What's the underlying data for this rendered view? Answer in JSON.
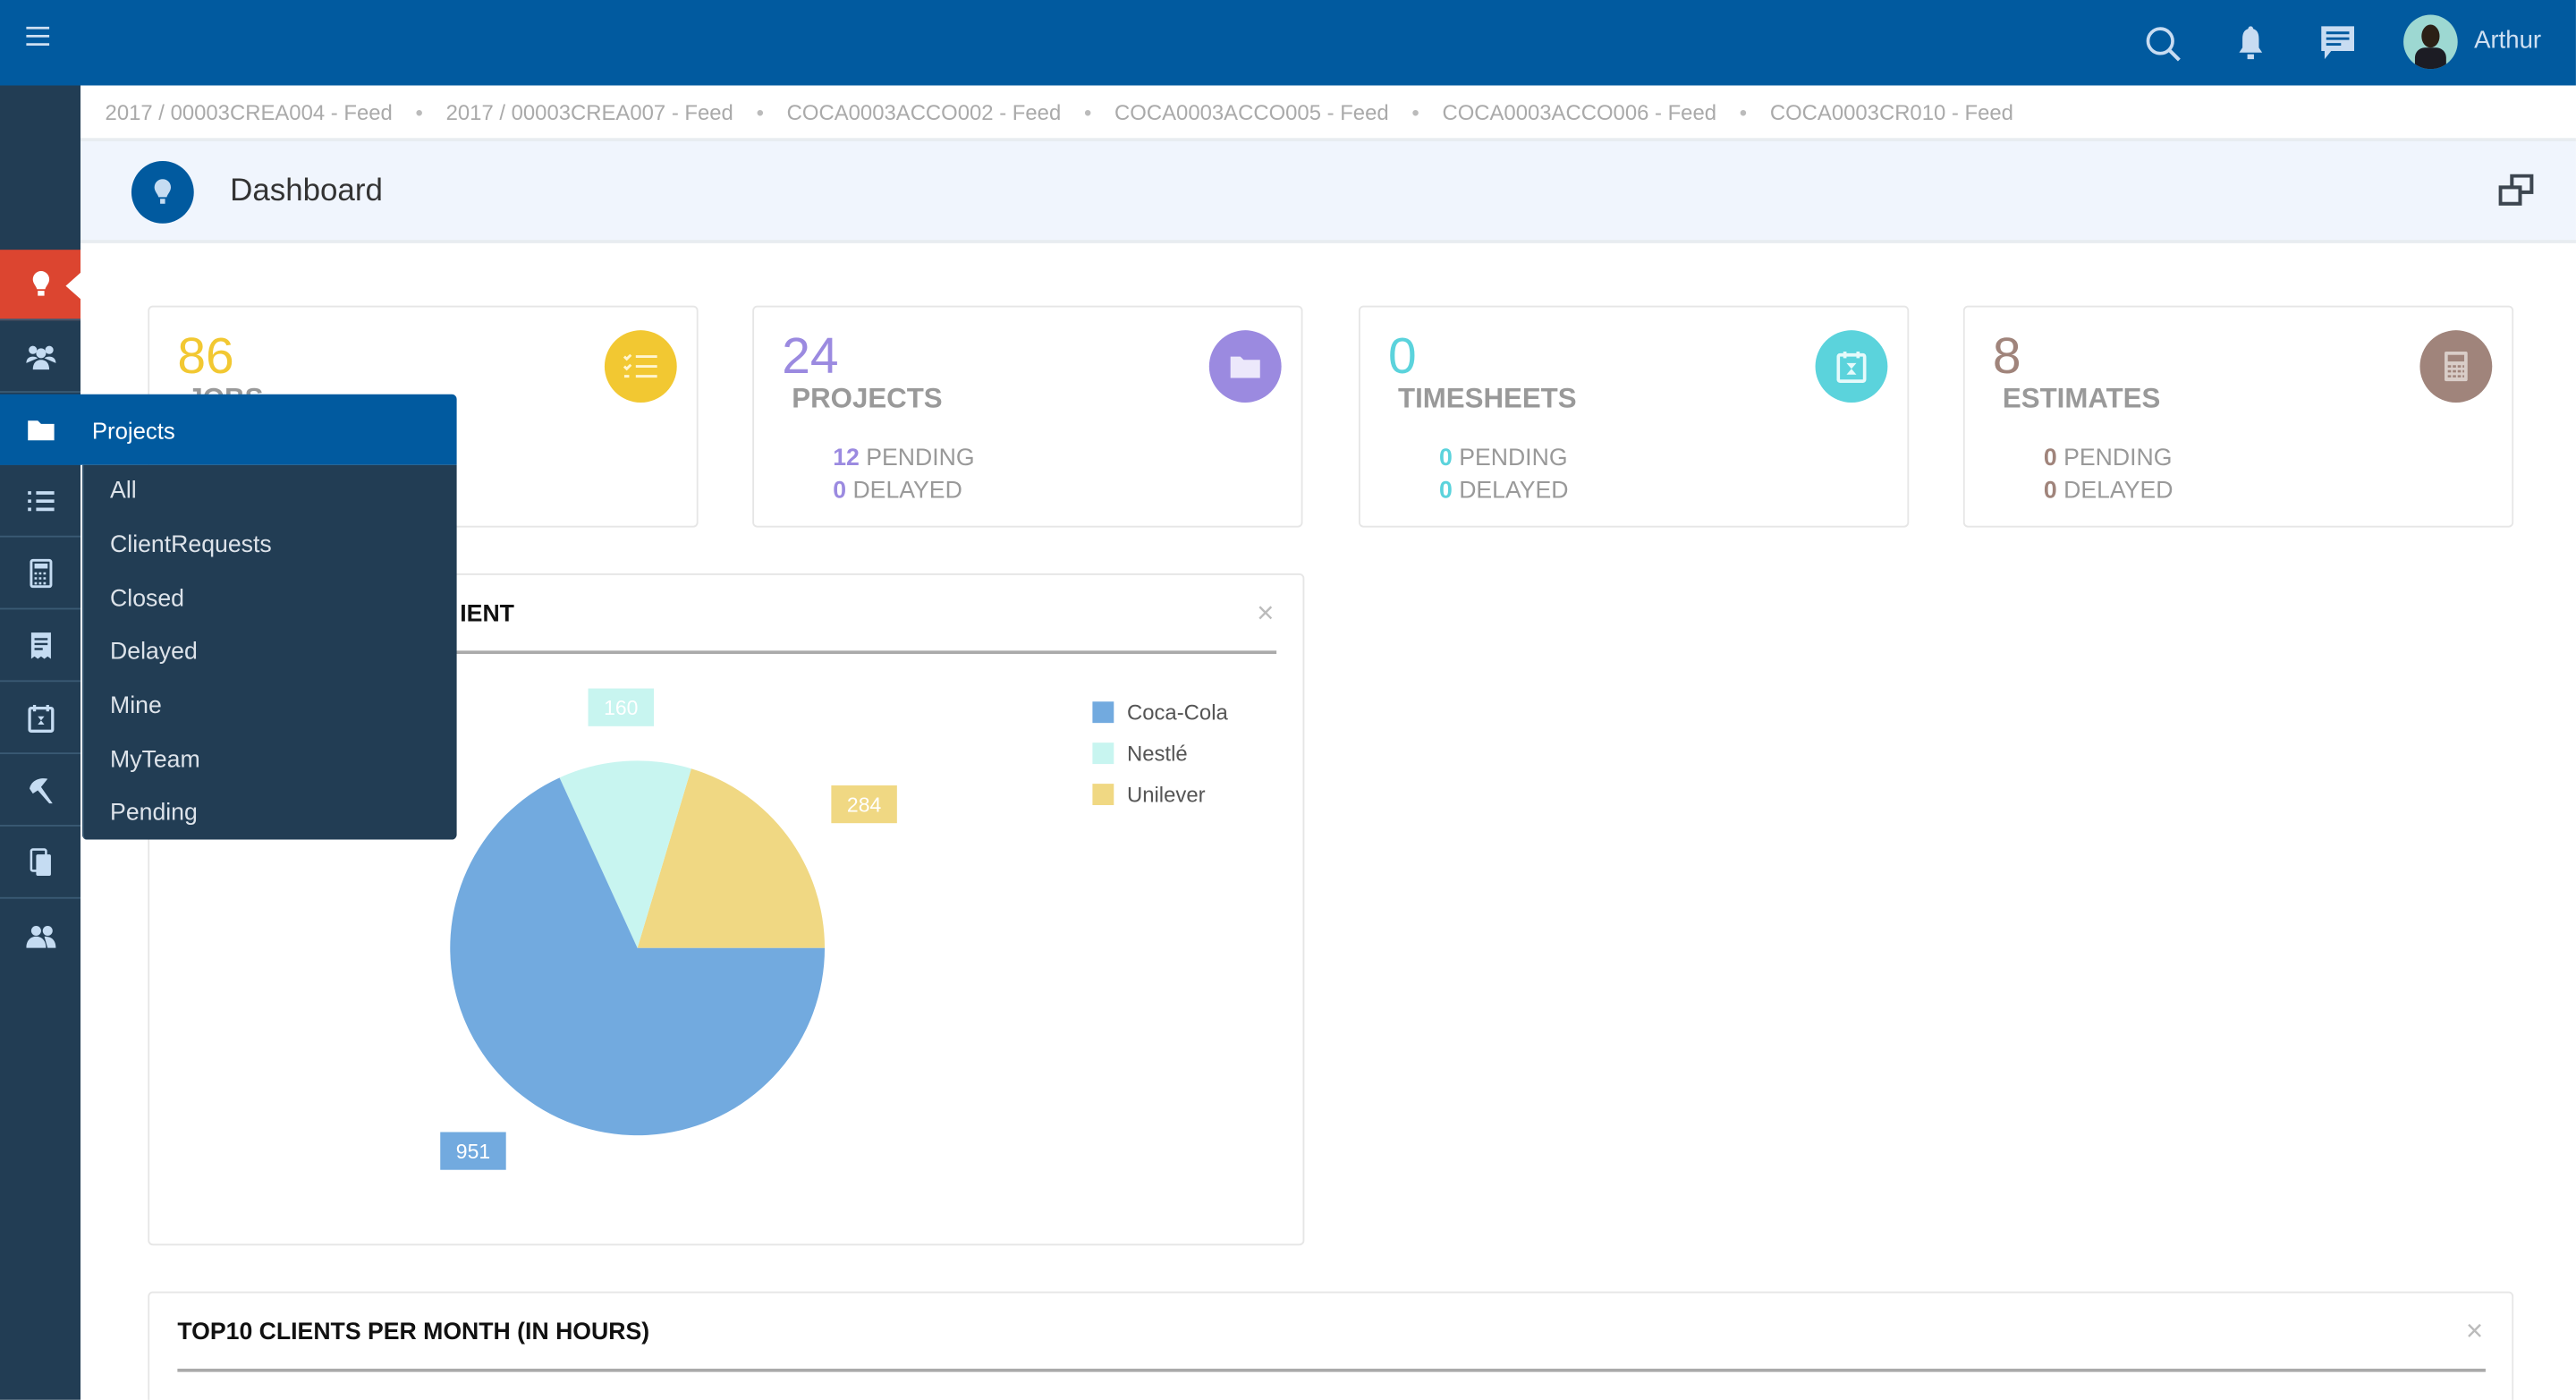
{
  "topbar": {
    "menu_icon": "hamburger-icon",
    "icons": [
      "search-icon",
      "bell-icon",
      "chat-icon"
    ],
    "user": {
      "name": "Arthur",
      "avatar": "avatar"
    },
    "color": "#015a9f"
  },
  "breadcrumbs": [
    "2017 / 00003CREA004 - Feed",
    "2017 / 00003CREA007 - Feed",
    "COCA0003ACCO002 - Feed",
    "COCA0003ACCO005 - Feed",
    "COCA0003ACCO006 - Feed",
    "COCA0003CR010 - Feed"
  ],
  "page_header": {
    "title": "Dashboard",
    "icon": "lightbulb-icon",
    "right_icon": "restore-window-icon"
  },
  "sidebar": {
    "active": "dashboard",
    "active_color": "#dc4530",
    "items": [
      "lightbulb-icon",
      "users-icon",
      "folder-icon",
      "list-icon",
      "calculator-icon",
      "receipt-icon",
      "calendar-icon",
      "tools-icon",
      "copy-icon",
      "team-icon"
    ]
  },
  "cards": [
    {
      "value": "86",
      "label": "JOBS",
      "color": "#f2c832",
      "icon": "checklist-icon"
    },
    {
      "value": "24",
      "label": "PROJECTS",
      "pending": "12",
      "delayed": "0",
      "pending_label": "PENDING",
      "delayed_label": "DELAYED",
      "color": "#9b8ae0",
      "icon": "folder-icon"
    },
    {
      "value": "0",
      "label": "TIMESHEETS",
      "pending": "0",
      "delayed": "0",
      "pending_label": "PENDING",
      "delayed_label": "DELAYED",
      "color": "#5bd3dc",
      "icon": "calendar-hourglass-icon"
    },
    {
      "value": "8",
      "label": "ESTIMATES",
      "pending": "0",
      "delayed": "0",
      "pending_label": "PENDING",
      "delayed_label": "DELAYED",
      "color": "#a0847b",
      "icon": "calculator-icon"
    }
  ],
  "dropdown": {
    "title": "Projects",
    "items": [
      "All",
      "ClientRequests",
      "Closed",
      "Delayed",
      "Mine",
      "MyTeam",
      "Pending"
    ]
  },
  "pie_panel": {
    "title_visible": "IENT",
    "close": "×"
  },
  "bottom_panel": {
    "title": "TOP10 CLIENTS PER MONTH (IN HOURS)",
    "close": "×"
  },
  "chart_data": {
    "type": "pie",
    "series": [
      {
        "name": "Coca-Cola",
        "value": 951,
        "color": "#72aadf"
      },
      {
        "name": "Nestlé",
        "value": 160,
        "color": "#c8f5f0"
      },
      {
        "name": "Unilever",
        "value": 284,
        "color": "#f0d883"
      }
    ]
  }
}
